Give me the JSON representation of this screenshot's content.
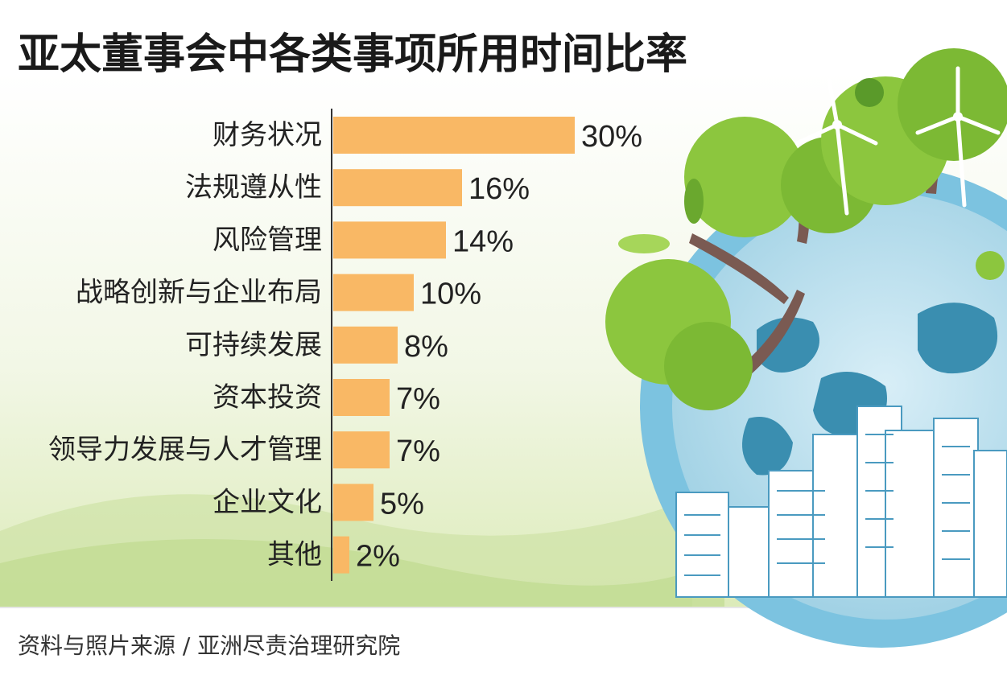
{
  "title": "亚太董事会中各类事项所用时间比率",
  "source": "资料与照片来源 / 亚洲尽责治理研究院",
  "colors": {
    "bar": "#f9b865",
    "axis": "#333333",
    "text": "#222222",
    "leaf_light": "#8cc63e",
    "leaf_dark": "#5a9a2a",
    "ocean": "#a8d6e8",
    "land": "#3a8eb0",
    "trunk": "#7a5a52"
  },
  "chart_data": {
    "type": "bar",
    "orientation": "horizontal",
    "title": "亚太董事会中各类事项所用时间比率",
    "categories": [
      "财务状况",
      "法规遵从性",
      "风险管理",
      "战略创新与企业布局",
      "可持续发展",
      "资本投资",
      "领导力发展与人才管理",
      "企业文化",
      "其他"
    ],
    "values": [
      30,
      16,
      14,
      10,
      8,
      7,
      7,
      5,
      2
    ],
    "labels": [
      "30%",
      "16%",
      "14%",
      "10%",
      "8%",
      "7%",
      "7%",
      "5%",
      "2%"
    ],
    "unit": "%",
    "xlim": [
      0,
      30
    ],
    "grid": false,
    "legend": "none"
  }
}
